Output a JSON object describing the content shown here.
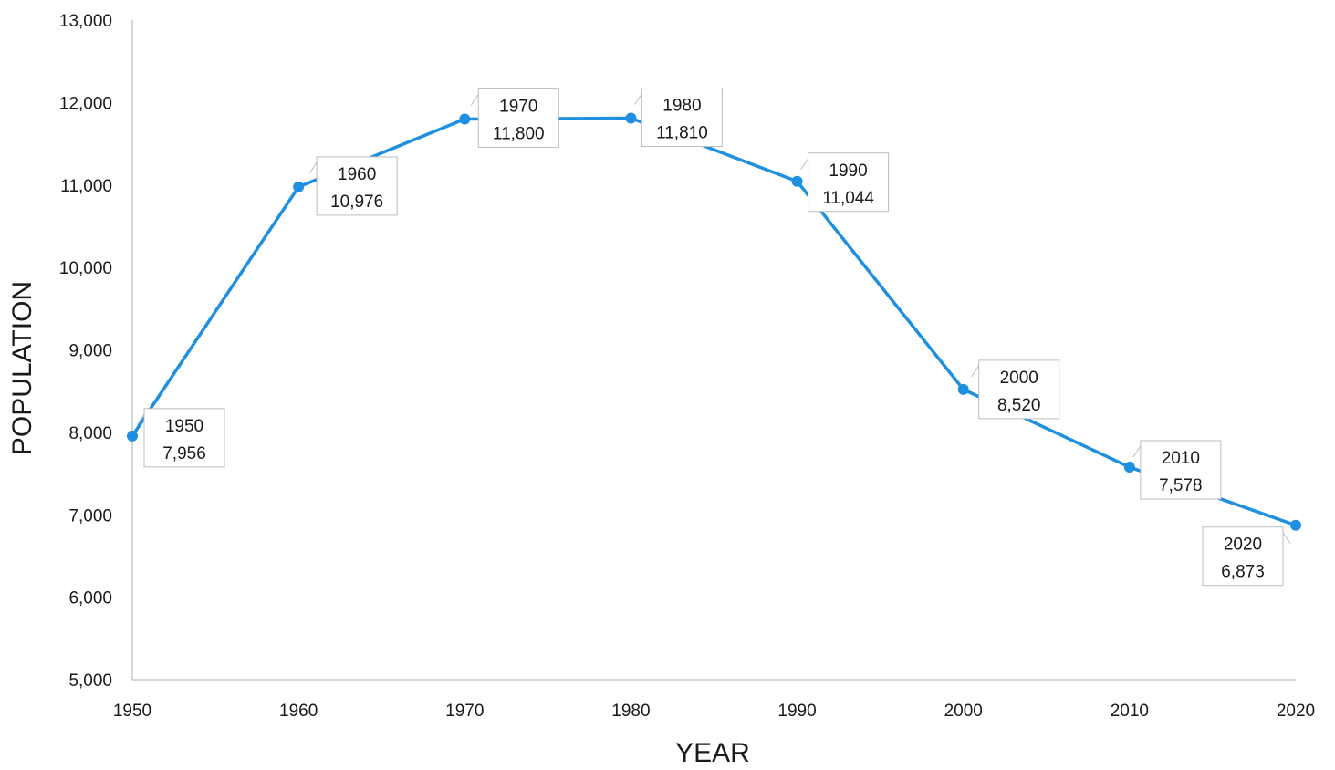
{
  "chart_data": {
    "type": "line",
    "title": "",
    "xlabel": "YEAR",
    "ylabel": "POPULATION",
    "x": [
      1950,
      1960,
      1970,
      1980,
      1990,
      2000,
      2010,
      2020
    ],
    "series": [
      {
        "name": "",
        "values": [
          7956,
          10976,
          11800,
          11810,
          11044,
          8520,
          7578,
          6873
        ]
      }
    ],
    "data_labels": [
      {
        "year": "1950",
        "value": "7,956"
      },
      {
        "year": "1960",
        "value": "10,976"
      },
      {
        "year": "1970",
        "value": "11,800"
      },
      {
        "year": "1980",
        "value": "11,810"
      },
      {
        "year": "1990",
        "value": "11,044"
      },
      {
        "year": "2000",
        "value": "8,520"
      },
      {
        "year": "2010",
        "value": "7,578"
      },
      {
        "year": "2020",
        "value": "6,873"
      }
    ],
    "xlim": [
      1950,
      2020
    ],
    "ylim": [
      5000,
      13000
    ],
    "x_ticks": [
      "1950",
      "1960",
      "1970",
      "1980",
      "1990",
      "2000",
      "2010",
      "2020"
    ],
    "y_ticks": [
      "5,000",
      "6,000",
      "7,000",
      "8,000",
      "9,000",
      "10,000",
      "11,000",
      "12,000",
      "13,000"
    ],
    "grid": false,
    "legend": "none",
    "colors": {
      "line": "#1f8fdf",
      "axis": "#c8c8c8",
      "text": "#1a1a1a"
    }
  }
}
